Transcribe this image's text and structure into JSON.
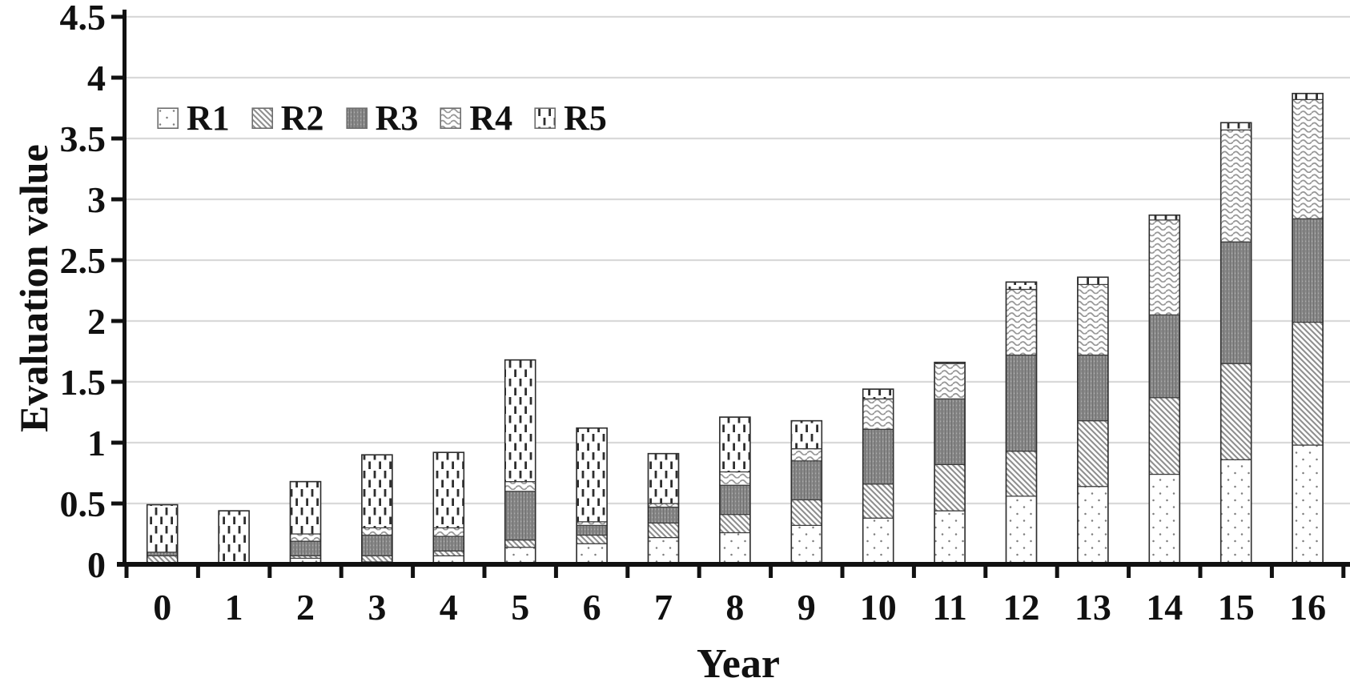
{
  "figure": {
    "background": "#ffffff",
    "axis_color": "#111111",
    "gridline_color": "#d9d9d9",
    "bar_outline_color": "#3a3a3a"
  },
  "chart_data": {
    "type": "bar",
    "subtype": "stacked-vertical",
    "title": "",
    "xlabel": "Year",
    "ylabel": "Evaluation value",
    "categories": [
      "0",
      "1",
      "2",
      "3",
      "4",
      "5",
      "6",
      "7",
      "8",
      "9",
      "10",
      "11",
      "12",
      "13",
      "14",
      "15",
      "16"
    ],
    "y_ticks": [
      "0",
      "0.5",
      "1",
      "1.5",
      "2",
      "2.5",
      "3",
      "3.5",
      "4",
      "4.5"
    ],
    "ylim": [
      0,
      4.5
    ],
    "grid": true,
    "legend_position": "inside-top-left",
    "series": [
      {
        "name": "R1",
        "pattern": "dots",
        "values": [
          0.0,
          0.0,
          0.05,
          0.02,
          0.07,
          0.14,
          0.17,
          0.22,
          0.26,
          0.32,
          0.38,
          0.44,
          0.56,
          0.64,
          0.74,
          0.86,
          0.98
        ]
      },
      {
        "name": "R2",
        "pattern": "diagonal-hatch",
        "values": [
          0.07,
          0.0,
          0.02,
          0.05,
          0.04,
          0.06,
          0.07,
          0.12,
          0.15,
          0.21,
          0.28,
          0.38,
          0.37,
          0.54,
          0.63,
          0.79,
          1.01
        ]
      },
      {
        "name": "R3",
        "pattern": "dark-weave",
        "values": [
          0.03,
          0.01,
          0.12,
          0.17,
          0.12,
          0.4,
          0.08,
          0.13,
          0.24,
          0.32,
          0.45,
          0.54,
          0.79,
          0.54,
          0.68,
          1.0,
          0.85
        ]
      },
      {
        "name": "R4",
        "pattern": "waves",
        "values": [
          0.0,
          0.0,
          0.06,
          0.06,
          0.07,
          0.08,
          0.03,
          0.03,
          0.11,
          0.1,
          0.25,
          0.29,
          0.54,
          0.58,
          0.78,
          0.92,
          0.98
        ]
      },
      {
        "name": "R5",
        "pattern": "vertical-dashes",
        "values": [
          0.39,
          0.43,
          0.43,
          0.6,
          0.62,
          1.0,
          0.77,
          0.41,
          0.45,
          0.23,
          0.08,
          0.01,
          0.06,
          0.06,
          0.04,
          0.06,
          0.05
        ]
      }
    ]
  }
}
